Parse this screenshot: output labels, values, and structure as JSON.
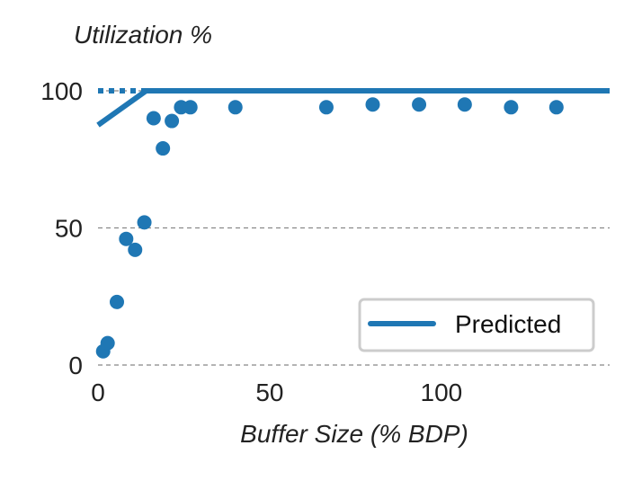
{
  "chart_data": {
    "type": "scatter",
    "ylabel": "Utilization %",
    "xlabel": "Buffer Size (% BDP)",
    "xlim": [
      0,
      149
    ],
    "ylim": [
      0,
      100
    ],
    "xticks": [
      0,
      50,
      100
    ],
    "yticks": [
      0,
      50,
      100
    ],
    "grid": "horizontal-dashed",
    "legend_position": "bottom-right",
    "colors": {
      "series": "#1f77b4",
      "grid": "#888888",
      "text": "#222222"
    },
    "series": [
      {
        "name": "Predicted",
        "type": "line",
        "x": [
          0,
          14,
          149
        ],
        "y": [
          87.5,
          100,
          100
        ]
      },
      {
        "type": "scatter",
        "x": [
          1.5,
          2.8,
          5.5,
          8.2,
          10.8,
          13.5,
          16.2,
          18.9,
          21.5,
          24.2,
          26.9,
          40,
          66.5,
          80,
          93.5,
          106.8,
          120.3,
          133.5
        ],
        "y": [
          5,
          8,
          23,
          46,
          42,
          52,
          90,
          79,
          89,
          94,
          94,
          94,
          94,
          95,
          95,
          95,
          94,
          94
        ]
      }
    ],
    "dotted_segment": {
      "x": [
        0,
        14
      ],
      "y": [
        100,
        100
      ]
    }
  }
}
